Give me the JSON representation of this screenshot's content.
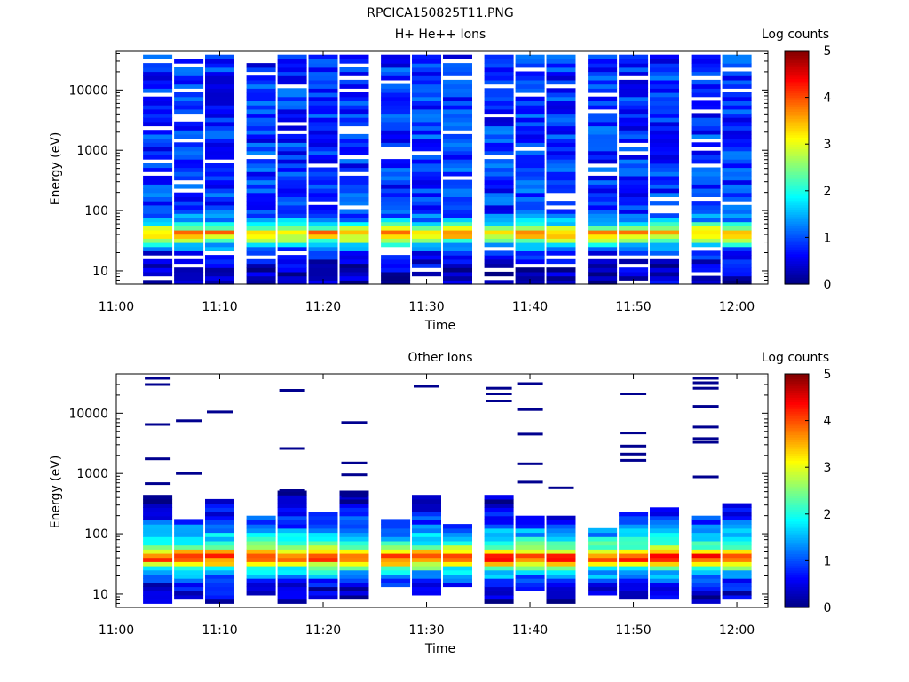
{
  "figure_title": "RPCICA150825T11.PNG",
  "panels": [
    {
      "title": "H+ He++ Ions",
      "ylabel": "Energy (eV)",
      "xlabel": "Time",
      "colorbar_label": "Log counts"
    },
    {
      "title": "Other Ions",
      "ylabel": "Energy (eV)",
      "xlabel": "Time",
      "colorbar_label": "Log counts"
    }
  ],
  "x_ticks": [
    "11:00",
    "11:10",
    "11:20",
    "11:30",
    "11:40",
    "11:50",
    "12:00"
  ],
  "y_ticks": [
    "10",
    "100",
    "1000",
    "10000"
  ],
  "colorbar_ticks": [
    "0",
    "1",
    "2",
    "3",
    "4",
    "5"
  ],
  "chart_data": [
    {
      "type": "heatmap",
      "title": "H+ He++ Ions",
      "xlabel": "Time",
      "ylabel": "Energy (eV)",
      "yscale": "log",
      "ylim": [
        6,
        45000
      ],
      "xlim": [
        "11:00",
        "12:03"
      ],
      "colorbar": {
        "label": "Log counts",
        "range": [
          0,
          5
        ],
        "colormap": "jet"
      },
      "time_columns": [
        "11:04",
        "11:07",
        "11:10",
        "11:14",
        "11:17",
        "11:20",
        "11:23",
        "11:27",
        "11:30",
        "11:33",
        "11:37",
        "11:40",
        "11:43",
        "11:47",
        "11:50",
        "11:53",
        "11:57",
        "12:00"
      ],
      "background_level": 0.8,
      "energy_profile": [
        {
          "energy_eV": 10,
          "level": 0.3
        },
        {
          "energy_eV": 20,
          "level": 0.7
        },
        {
          "energy_eV": 28,
          "level": 1.8
        },
        {
          "energy_eV": 35,
          "level": 3.0
        },
        {
          "energy_eV": 45,
          "level": 3.6
        },
        {
          "energy_eV": 55,
          "level": 2.2
        },
        {
          "energy_eV": 70,
          "level": 1.4
        },
        {
          "energy_eV": 100,
          "level": 0.9
        },
        {
          "energy_eV": 40000,
          "level": 0.8
        }
      ]
    },
    {
      "type": "heatmap",
      "title": "Other Ions",
      "xlabel": "Time",
      "ylabel": "Energy (eV)",
      "yscale": "log",
      "ylim": [
        6,
        45000
      ],
      "xlim": [
        "11:00",
        "12:03"
      ],
      "colorbar": {
        "label": "Log counts",
        "range": [
          0,
          5
        ],
        "colormap": "jet"
      },
      "time_columns": [
        "11:04",
        "11:07",
        "11:10",
        "11:14",
        "11:17",
        "11:20",
        "11:23",
        "11:27",
        "11:30",
        "11:33",
        "11:37",
        "11:40",
        "11:43",
        "11:47",
        "11:50",
        "11:53",
        "11:57",
        "12:00"
      ],
      "energy_profile": [
        {
          "energy_eV": 8,
          "level": 0.3
        },
        {
          "energy_eV": 15,
          "level": 0.6
        },
        {
          "energy_eV": 22,
          "level": 1.5
        },
        {
          "energy_eV": 28,
          "level": 2.2
        },
        {
          "energy_eV": 35,
          "level": 3.6
        },
        {
          "energy_eV": 40,
          "level": 4.3
        },
        {
          "energy_eV": 48,
          "level": 3.7
        },
        {
          "energy_eV": 60,
          "level": 2.6
        },
        {
          "energy_eV": 80,
          "level": 1.8
        },
        {
          "energy_eV": 120,
          "level": 1.2
        },
        {
          "energy_eV": 200,
          "level": 0.7
        },
        {
          "energy_eV": 400,
          "level": 0.3
        }
      ],
      "upper_extent_eV": [
        450,
        170,
        350,
        190,
        480,
        230,
        550,
        160,
        420,
        150,
        450,
        200,
        190,
        120,
        250,
        270,
        210,
        320
      ],
      "lower_extent_eV": [
        7,
        8,
        7,
        9,
        7,
        8,
        8,
        14,
        9,
        14,
        7,
        12,
        7,
        9,
        8,
        8,
        7,
        8
      ],
      "sparse_high_energy_eV": [
        [
          680,
          1750,
          6500,
          30000,
          38000
        ],
        [
          1000,
          7500
        ],
        [
          10500
        ],
        [],
        [
          2600,
          24000,
          520
        ],
        [],
        [
          1500,
          7000,
          420,
          950
        ],
        [],
        [
          28000
        ],
        [],
        [
          16000,
          21000,
          26000
        ],
        [
          720,
          1450,
          4500,
          11500,
          31000
        ],
        [
          580
        ],
        [],
        [
          1650,
          2100,
          2850,
          4700,
          21000
        ],
        [],
        [
          880,
          3300,
          3800,
          5900,
          13000,
          26000,
          32000,
          38000
        ],
        []
      ]
    }
  ]
}
